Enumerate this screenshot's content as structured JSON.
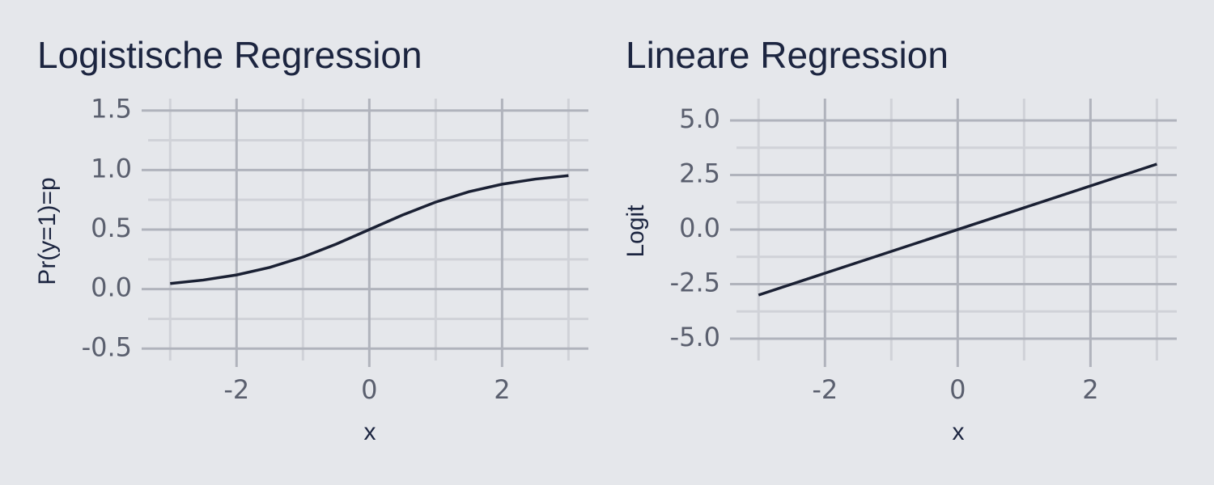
{
  "chart_data": [
    {
      "type": "line",
      "title": "Logistische Regression",
      "x_label": "x",
      "y_label": "Pr(y=1)=p",
      "x": [
        -3,
        -2.5,
        -2,
        -1.5,
        -1,
        -0.5,
        0,
        0.5,
        1,
        1.5,
        2,
        2.5,
        3
      ],
      "values": [
        0.047,
        0.076,
        0.119,
        0.182,
        0.269,
        0.378,
        0.5,
        0.622,
        0.731,
        0.818,
        0.881,
        0.924,
        0.953
      ],
      "color": "#1a2033",
      "xlim": [
        -3.43,
        3.3
      ],
      "ylim": [
        -0.6,
        1.6
      ],
      "xticks": [
        -2,
        0,
        2
      ],
      "xminorticks": [
        -3,
        -1,
        1,
        3
      ],
      "yticks": [
        {
          "value": -0.5,
          "label": "-0.5"
        },
        {
          "value": 0,
          "label": "0.0"
        },
        0.5,
        {
          "value": 1,
          "label": "1.0"
        },
        1.5
      ],
      "yminorticks": [
        -0.25,
        0.25,
        0.75,
        1.25
      ],
      "grid": true
    },
    {
      "type": "line",
      "title": "Lineare Regression",
      "x_label": "x",
      "y_label": "Logit",
      "x": [
        -3,
        3
      ],
      "values": [
        -3,
        3
      ],
      "color": "#1a2033",
      "xlim": [
        -3.43,
        3.3
      ],
      "ylim": [
        -6,
        6
      ],
      "xticks": [
        -2,
        0,
        2
      ],
      "xminorticks": [
        -3,
        -1,
        1,
        3
      ],
      "yticks": [
        {
          "value": -5,
          "label": "-5.0"
        },
        {
          "value": -2.5,
          "label": "-2.5"
        },
        {
          "value": 0,
          "label": "0.0"
        },
        {
          "value": 2.5,
          "label": "2.5"
        },
        {
          "value": 5,
          "label": "5.0"
        }
      ],
      "yminorticks": [
        -3.75,
        -1.25,
        1.25,
        3.75
      ],
      "grid": true
    }
  ]
}
